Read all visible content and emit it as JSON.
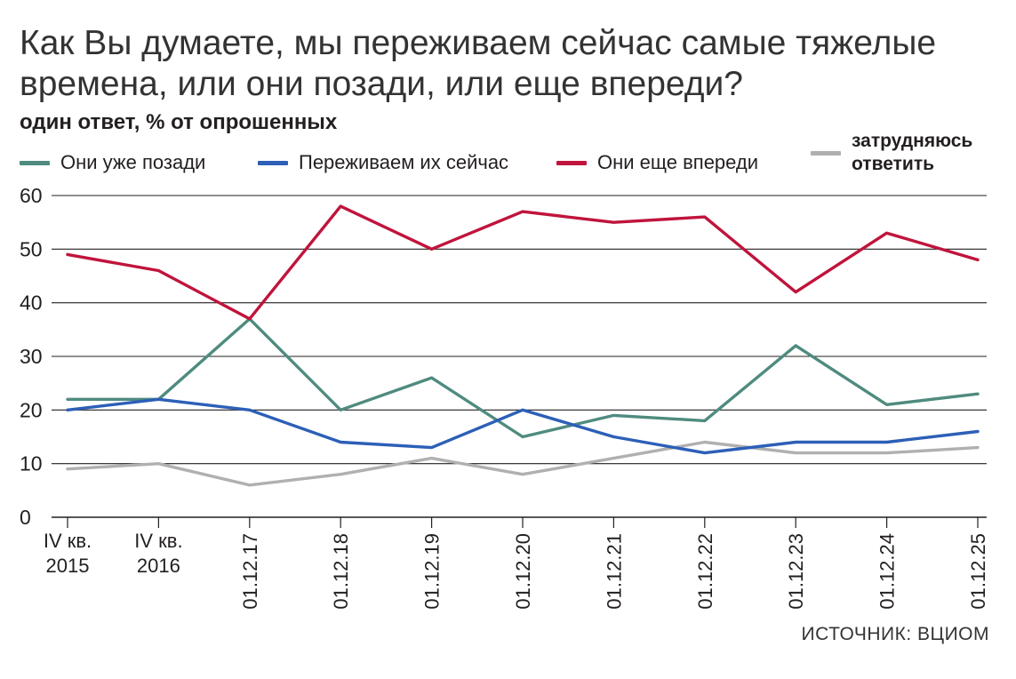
{
  "title": "Как Вы думаете, мы переживаем сейчас самые тяжелые времена, или они позади, или еще впереди?",
  "subtitle": "один ответ, % от опрошенных",
  "source": "ИСТОЧНИК: ВЦИОМ",
  "legend": [
    {
      "label": "Они уже позади",
      "color": "#4f8b7f"
    },
    {
      "label": "Переживаем их сейчас",
      "color": "#2c5fb7"
    },
    {
      "label": "Они еще впереди",
      "color": "#c0143c"
    },
    {
      "label": "затрудняюсь ответить",
      "color": "#b0b0b0"
    }
  ],
  "chart_data": {
    "type": "line",
    "title": "Как Вы думаете, мы переживаем сейчас самые тяжелые времена, или они позади, или еще впереди?",
    "subtitle": "один ответ, % от опрошенных",
    "x": [
      "IV кв. 2015",
      "IV кв. 2016",
      "01.12.17",
      "01.12.18",
      "01.12.19",
      "01.12.20",
      "01.12.21",
      "01.12.22",
      "01.12.23",
      "01.12.24",
      "01.12.25"
    ],
    "x_tick_lines": [
      [
        "IV кв.",
        "2015"
      ],
      [
        "IV кв.",
        "2016"
      ],
      [
        "01.12.17"
      ],
      [
        "01.12.18"
      ],
      [
        "01.12.19"
      ],
      [
        "01.12.20"
      ],
      [
        "01.12.21"
      ],
      [
        "01.12.22"
      ],
      [
        "01.12.23"
      ],
      [
        "01.12.24"
      ],
      [
        "01.12.25"
      ]
    ],
    "x_tick_rotated": [
      false,
      false,
      true,
      true,
      true,
      true,
      true,
      true,
      true,
      true,
      true
    ],
    "y_ticks": [
      0,
      10,
      20,
      30,
      40,
      50,
      60
    ],
    "ylim": [
      0,
      60
    ],
    "grid": true,
    "series": [
      {
        "name": "Они уже позади",
        "color": "#4f8b7f",
        "values": [
          22,
          22,
          37,
          20,
          26,
          15,
          19,
          18,
          32,
          21,
          23
        ]
      },
      {
        "name": "Переживаем их сейчас",
        "color": "#2c5fb7",
        "values": [
          20,
          22,
          20,
          14,
          13,
          20,
          15,
          12,
          14,
          14,
          16
        ]
      },
      {
        "name": "Они еще впереди",
        "color": "#c0143c",
        "values": [
          49,
          46,
          37,
          58,
          50,
          57,
          55,
          56,
          42,
          53,
          48
        ]
      },
      {
        "name": "затрудняюсь ответить",
        "color": "#b0b0b0",
        "values": [
          9,
          10,
          6,
          8,
          11,
          8,
          11,
          14,
          12,
          12,
          13
        ]
      }
    ]
  }
}
